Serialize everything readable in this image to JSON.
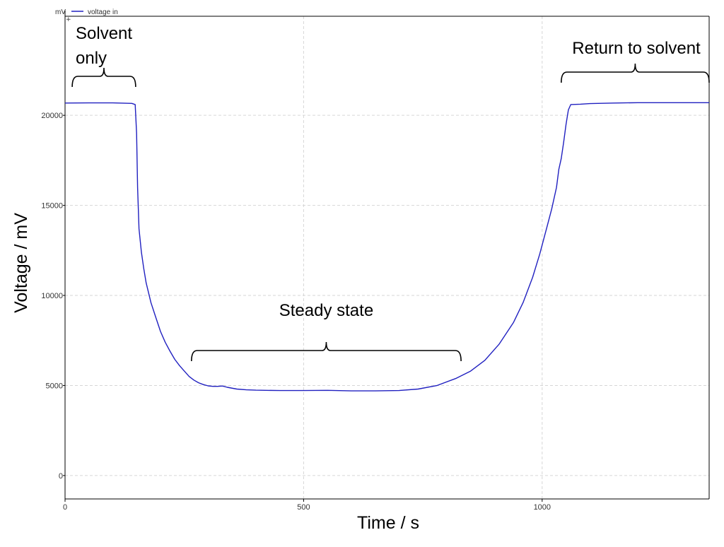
{
  "chart_data": {
    "type": "line",
    "xlabel": "Time / s",
    "ylabel": "Voltage / mV",
    "y_unit": "mV",
    "xlim": [
      0,
      1350
    ],
    "ylim": [
      -1300,
      25500
    ],
    "x_ticks": [
      0,
      500,
      1000
    ],
    "y_ticks": [
      0,
      5000,
      10000,
      15000,
      20000
    ],
    "grid": true,
    "legend_position": "top-left",
    "series": [
      {
        "name": "voltage in",
        "color": "#2020c0",
        "points": [
          [
            0,
            20680
          ],
          [
            50,
            20690
          ],
          [
            100,
            20690
          ],
          [
            140,
            20660
          ],
          [
            147,
            20600
          ],
          [
            150,
            19000
          ],
          [
            152,
            16000
          ],
          [
            155,
            13700
          ],
          [
            160,
            12400
          ],
          [
            165,
            11500
          ],
          [
            170,
            10700
          ],
          [
            180,
            9600
          ],
          [
            190,
            8800
          ],
          [
            200,
            8000
          ],
          [
            210,
            7400
          ],
          [
            220,
            6900
          ],
          [
            230,
            6450
          ],
          [
            240,
            6100
          ],
          [
            250,
            5800
          ],
          [
            260,
            5500
          ],
          [
            270,
            5300
          ],
          [
            280,
            5150
          ],
          [
            290,
            5050
          ],
          [
            300,
            4980
          ],
          [
            310,
            4950
          ],
          [
            320,
            4950
          ],
          [
            330,
            4970
          ],
          [
            340,
            4900
          ],
          [
            360,
            4800
          ],
          [
            380,
            4760
          ],
          [
            400,
            4740
          ],
          [
            450,
            4720
          ],
          [
            500,
            4720
          ],
          [
            550,
            4730
          ],
          [
            600,
            4700
          ],
          [
            650,
            4700
          ],
          [
            700,
            4720
          ],
          [
            740,
            4800
          ],
          [
            780,
            5000
          ],
          [
            820,
            5400
          ],
          [
            850,
            5800
          ],
          [
            880,
            6400
          ],
          [
            910,
            7300
          ],
          [
            940,
            8500
          ],
          [
            960,
            9600
          ],
          [
            980,
            11000
          ],
          [
            995,
            12300
          ],
          [
            1010,
            13800
          ],
          [
            1020,
            14800
          ],
          [
            1030,
            16000
          ],
          [
            1035,
            17000
          ],
          [
            1040,
            17600
          ],
          [
            1045,
            18500
          ],
          [
            1050,
            19500
          ],
          [
            1055,
            20300
          ],
          [
            1060,
            20600
          ],
          [
            1080,
            20620
          ],
          [
            1100,
            20650
          ],
          [
            1150,
            20680
          ],
          [
            1200,
            20700
          ],
          [
            1250,
            20700
          ],
          [
            1300,
            20700
          ],
          [
            1350,
            20700
          ]
        ]
      }
    ],
    "annotations": [
      {
        "lines": [
          "Solvent",
          "only"
        ],
        "x_start": 15,
        "x_end": 148
      },
      {
        "lines": [
          "Steady state"
        ],
        "x_start": 265,
        "x_end": 830
      },
      {
        "lines": [
          "Return to solvent"
        ],
        "x_start": 1040,
        "x_end": 1350
      }
    ]
  }
}
